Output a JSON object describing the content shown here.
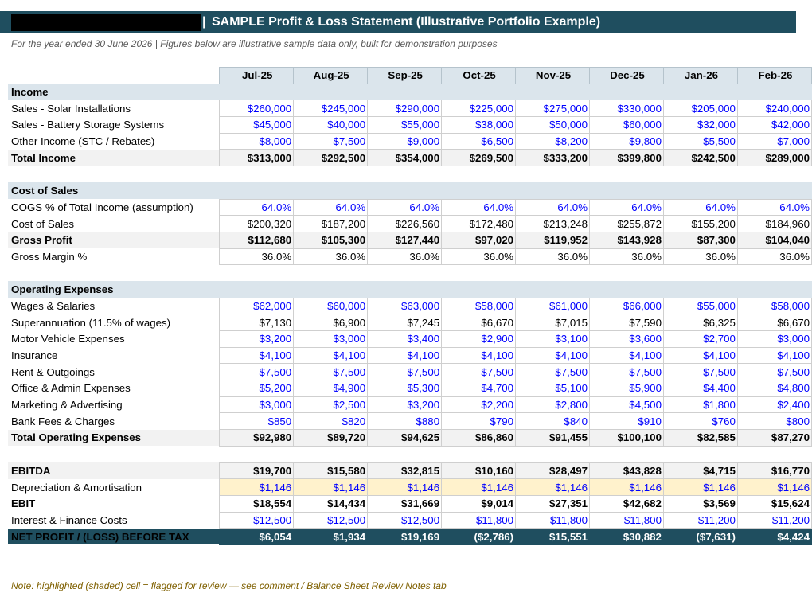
{
  "header": {
    "title": "SAMPLE Profit & Loss Statement (Illustrative Portfolio Example)",
    "separator": "|",
    "subtitle": "For the year ended 30 June 2026  |  Figures below are illustrative sample data only, built for demonstration purposes"
  },
  "months": [
    "Jul-25",
    "Aug-25",
    "Sep-25",
    "Oct-25",
    "Nov-25",
    "Dec-25",
    "Jan-26",
    "Feb-26"
  ],
  "rows": [
    {
      "type": "section",
      "label": "Income"
    },
    {
      "type": "input",
      "label": "Sales - Solar Installations",
      "values": [
        "$260,000",
        "$245,000",
        "$290,000",
        "$225,000",
        "$275,000",
        "$330,000",
        "$205,000",
        "$240,000"
      ]
    },
    {
      "type": "input",
      "label": "Sales - Battery Storage Systems",
      "values": [
        "$45,000",
        "$40,000",
        "$55,000",
        "$38,000",
        "$50,000",
        "$60,000",
        "$32,000",
        "$42,000"
      ]
    },
    {
      "type": "input",
      "label": "Other Income (STC / Rebates)",
      "values": [
        "$8,000",
        "$7,500",
        "$9,000",
        "$6,500",
        "$8,200",
        "$9,800",
        "$5,500",
        "$7,000"
      ]
    },
    {
      "type": "total",
      "label": "Total Income",
      "values": [
        "$313,000",
        "$292,500",
        "$354,000",
        "$269,500",
        "$333,200",
        "$399,800",
        "$242,500",
        "$289,000"
      ]
    },
    {
      "type": "blank"
    },
    {
      "type": "section",
      "label": "Cost of Sales"
    },
    {
      "type": "input",
      "label": "COGS % of Total Income (assumption)",
      "values": [
        "64.0%",
        "64.0%",
        "64.0%",
        "64.0%",
        "64.0%",
        "64.0%",
        "64.0%",
        "64.0%"
      ]
    },
    {
      "type": "normal",
      "label": "Cost of Sales",
      "values": [
        "$200,320",
        "$187,200",
        "$226,560",
        "$172,480",
        "$213,248",
        "$255,872",
        "$155,200",
        "$184,960"
      ]
    },
    {
      "type": "total",
      "label": "Gross Profit",
      "values": [
        "$112,680",
        "$105,300",
        "$127,440",
        "$97,020",
        "$119,952",
        "$143,928",
        "$87,300",
        "$104,040"
      ]
    },
    {
      "type": "normal",
      "label": "Gross Margin %",
      "values": [
        "36.0%",
        "36.0%",
        "36.0%",
        "36.0%",
        "36.0%",
        "36.0%",
        "36.0%",
        "36.0%"
      ]
    },
    {
      "type": "blank"
    },
    {
      "type": "section",
      "label": "Operating Expenses"
    },
    {
      "type": "input",
      "label": "Wages & Salaries",
      "values": [
        "$62,000",
        "$60,000",
        "$63,000",
        "$58,000",
        "$61,000",
        "$66,000",
        "$55,000",
        "$58,000"
      ]
    },
    {
      "type": "normal",
      "label": "Superannuation (11.5% of wages)",
      "values": [
        "$7,130",
        "$6,900",
        "$7,245",
        "$6,670",
        "$7,015",
        "$7,590",
        "$6,325",
        "$6,670"
      ]
    },
    {
      "type": "input",
      "label": "Motor Vehicle Expenses",
      "values": [
        "$3,200",
        "$3,000",
        "$3,400",
        "$2,900",
        "$3,100",
        "$3,600",
        "$2,700",
        "$3,000"
      ]
    },
    {
      "type": "input",
      "label": "Insurance",
      "values": [
        "$4,100",
        "$4,100",
        "$4,100",
        "$4,100",
        "$4,100",
        "$4,100",
        "$4,100",
        "$4,100"
      ]
    },
    {
      "type": "input",
      "label": "Rent & Outgoings",
      "values": [
        "$7,500",
        "$7,500",
        "$7,500",
        "$7,500",
        "$7,500",
        "$7,500",
        "$7,500",
        "$7,500"
      ]
    },
    {
      "type": "input",
      "label": "Office & Admin Expenses",
      "values": [
        "$5,200",
        "$4,900",
        "$5,300",
        "$4,700",
        "$5,100",
        "$5,900",
        "$4,400",
        "$4,800"
      ]
    },
    {
      "type": "input",
      "label": "Marketing & Advertising",
      "values": [
        "$3,000",
        "$2,500",
        "$3,200",
        "$2,200",
        "$2,800",
        "$4,500",
        "$1,800",
        "$2,400"
      ]
    },
    {
      "type": "input",
      "label": "Bank Fees & Charges",
      "values": [
        "$850",
        "$820",
        "$880",
        "$790",
        "$840",
        "$910",
        "$760",
        "$800"
      ]
    },
    {
      "type": "total",
      "label": "Total Operating Expenses",
      "values": [
        "$92,980",
        "$89,720",
        "$94,625",
        "$86,860",
        "$91,455",
        "$100,100",
        "$82,585",
        "$87,270"
      ]
    },
    {
      "type": "blank"
    },
    {
      "type": "total",
      "label": "EBITDA",
      "values": [
        "$19,700",
        "$15,580",
        "$32,815",
        "$10,160",
        "$28,497",
        "$43,828",
        "$4,715",
        "$16,770"
      ]
    },
    {
      "type": "flag",
      "label": "Depreciation & Amortisation",
      "values": [
        "$1,146",
        "$1,146",
        "$1,146",
        "$1,146",
        "$1,146",
        "$1,146",
        "$1,146",
        "$1,146"
      ]
    },
    {
      "type": "bold",
      "label": "EBIT",
      "values": [
        "$18,554",
        "$14,434",
        "$31,669",
        "$9,014",
        "$27,351",
        "$42,682",
        "$3,569",
        "$15,624"
      ]
    },
    {
      "type": "input",
      "label": "Interest & Finance Costs",
      "values": [
        "$12,500",
        "$12,500",
        "$12,500",
        "$11,800",
        "$11,800",
        "$11,800",
        "$11,200",
        "$11,200"
      ]
    },
    {
      "type": "net",
      "label": "NET PROFIT / (LOSS) BEFORE TAX",
      "values": [
        "$6,054",
        "$1,934",
        "$19,169",
        "($2,786)",
        "$15,551",
        "$30,882",
        "($7,631)",
        "$4,424"
      ]
    }
  ],
  "footer": {
    "note": "Note: highlighted (shaded) cell = flagged for review — see comment / Balance Sheet Review Notes tab"
  }
}
